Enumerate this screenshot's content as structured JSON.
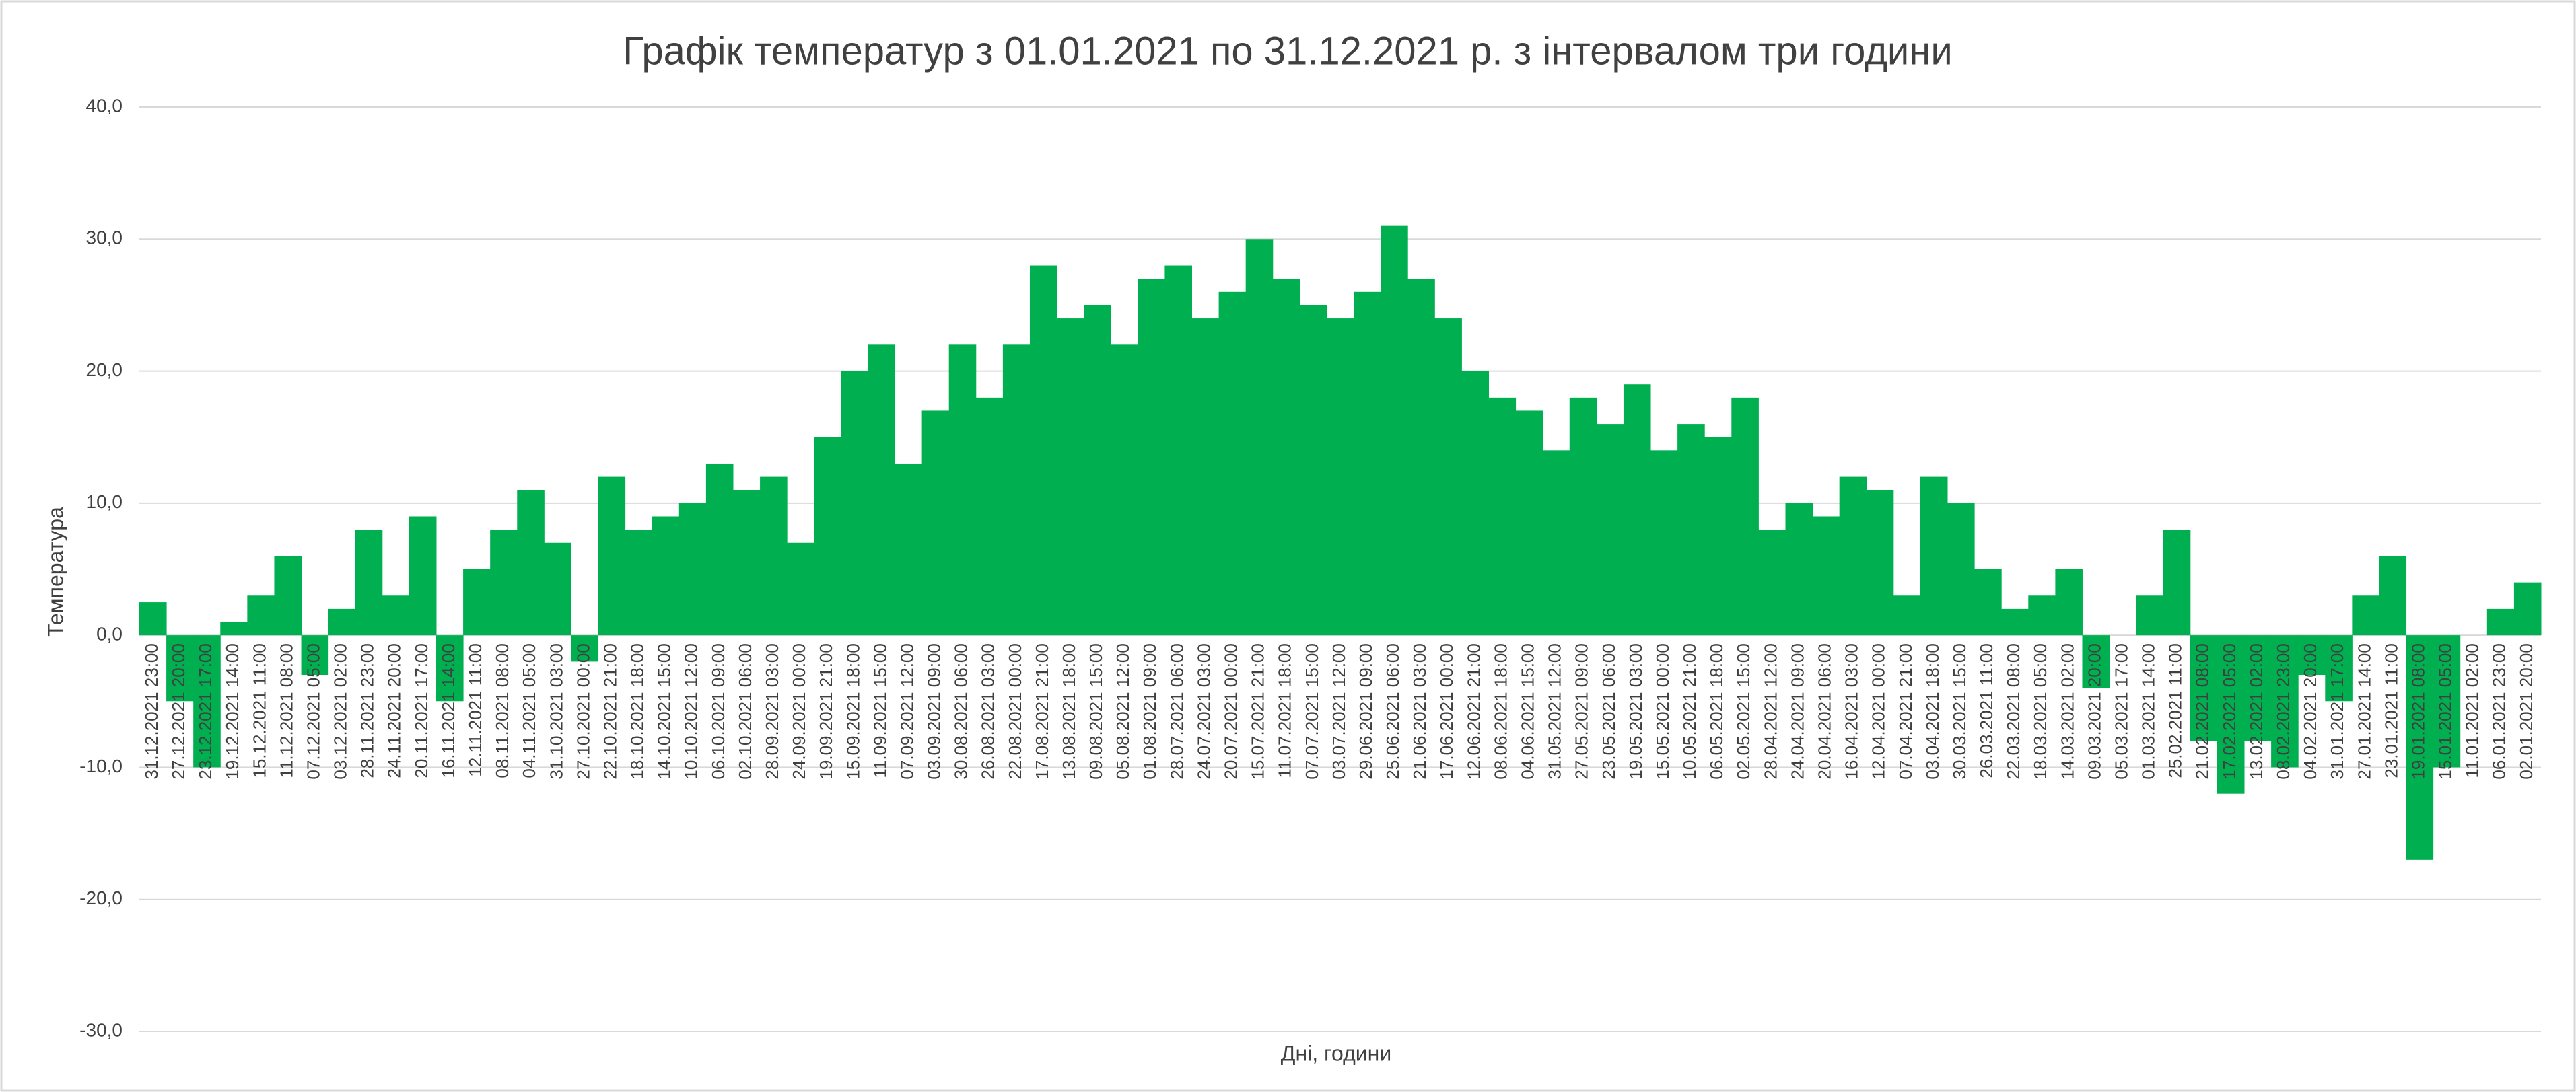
{
  "chart_data": {
    "type": "bar",
    "title": "Графік температур з 01.01.2021 по 31.12.2021 р. з інтервалом три години",
    "x_label": "Дні, години",
    "y_label": "Температура",
    "color": "#00b050",
    "grid": true,
    "ylim": [
      -30,
      40
    ],
    "yticks": [
      {
        "value": -30,
        "label": "-30,0"
      },
      {
        "value": -20,
        "label": "-20,0"
      },
      {
        "value": -10,
        "label": "-10,0"
      },
      {
        "value": 0,
        "label": "0,0"
      },
      {
        "value": 10,
        "label": "10,0"
      },
      {
        "value": 20,
        "label": "20,0"
      },
      {
        "value": 30,
        "label": "30,0"
      },
      {
        "value": 40,
        "label": "40,0"
      }
    ],
    "categories": [
      "31.12.2021 23:00",
      "27.12.2021 20:00",
      "23.12.2021 17:00",
      "19.12.2021 14:00",
      "15.12.2021 11:00",
      "11.12.2021 08:00",
      "07.12.2021 05:00",
      "03.12.2021 02:00",
      "28.11.2021 23:00",
      "24.11.2021 20:00",
      "20.11.2021 17:00",
      "16.11.2021 14:00",
      "12.11.2021 11:00",
      "08.11.2021 08:00",
      "04.11.2021 05:00",
      "31.10.2021 03:00",
      "27.10.2021 00:00",
      "22.10.2021 21:00",
      "18.10.2021 18:00",
      "14.10.2021 15:00",
      "10.10.2021 12:00",
      "06.10.2021 09:00",
      "02.10.2021 06:00",
      "28.09.2021 03:00",
      "24.09.2021 00:00",
      "19.09.2021 21:00",
      "15.09.2021 18:00",
      "11.09.2021 15:00",
      "07.09.2021 12:00",
      "03.09.2021 09:00",
      "30.08.2021 06:00",
      "26.08.2021 03:00",
      "22.08.2021 00:00",
      "17.08.2021 21:00",
      "13.08.2021 18:00",
      "09.08.2021 15:00",
      "05.08.2021 12:00",
      "01.08.2021 09:00",
      "28.07.2021 06:00",
      "24.07.2021 03:00",
      "20.07.2021 00:00",
      "15.07.2021 21:00",
      "11.07.2021 18:00",
      "07.07.2021 15:00",
      "03.07.2021 12:00",
      "29.06.2021 09:00",
      "25.06.2021 06:00",
      "21.06.2021 03:00",
      "17.06.2021 00:00",
      "12.06.2021 21:00",
      "08.06.2021 18:00",
      "04.06.2021 15:00",
      "31.05.2021 12:00",
      "27.05.2021 09:00",
      "23.05.2021 06:00",
      "19.05.2021 03:00",
      "15.05.2021 00:00",
      "10.05.2021 21:00",
      "06.05.2021 18:00",
      "02.05.2021 15:00",
      "28.04.2021 12:00",
      "24.04.2021 09:00",
      "20.04.2021 06:00",
      "16.04.2021 03:00",
      "12.04.2021 00:00",
      "07.04.2021 21:00",
      "03.04.2021 18:00",
      "30.03.2021 15:00",
      "26.03.2021 11:00",
      "22.03.2021 08:00",
      "18.03.2021 05:00",
      "14.03.2021 02:00",
      "09.03.2021 20:00",
      "05.03.2021 17:00",
      "01.03.2021 14:00",
      "25.02.2021 11:00",
      "21.02.2021 08:00",
      "17.02.2021 05:00",
      "13.02.2021 02:00",
      "08.02.2021 23:00",
      "04.02.2021 20:00",
      "31.01.2021 17:00",
      "27.01.2021 14:00",
      "23.01.2021 11:00",
      "19.01.2021 08:00",
      "15.01.2021 05:00",
      "11.01.2021 02:00",
      "06.01.2021 23:00",
      "02.01.2021 20:00"
    ],
    "values": [
      2.5,
      -5,
      -10,
      1,
      3,
      6,
      -3,
      2,
      8,
      3,
      9,
      -5,
      5,
      8,
      11,
      7,
      -2,
      12,
      8,
      9,
      10,
      13,
      11,
      12,
      7,
      15,
      20,
      22,
      13,
      17,
      22,
      18,
      22,
      28,
      24,
      25,
      22,
      27,
      28,
      24,
      26,
      30,
      27,
      25,
      24,
      26,
      31,
      27,
      24,
      20,
      18,
      17,
      14,
      18,
      16,
      19,
      14,
      16,
      15,
      18,
      8,
      10,
      9,
      12,
      11,
      3,
      12,
      10,
      5,
      2,
      3,
      5,
      -4,
      0,
      3,
      8,
      -8,
      -12,
      -8,
      -10,
      -3,
      -5,
      3,
      6,
      -17,
      -10,
      0,
      2,
      4
    ]
  }
}
